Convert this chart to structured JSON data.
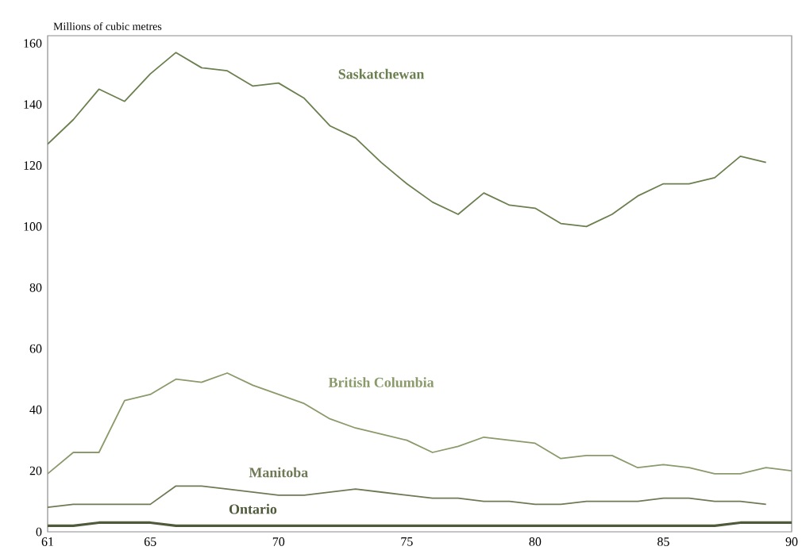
{
  "chart_data": {
    "type": "line",
    "ylabel": "Millions of cubic metres",
    "x": [
      61,
      62,
      63,
      64,
      65,
      66,
      67,
      68,
      69,
      70,
      71,
      72,
      73,
      74,
      75,
      76,
      77,
      78,
      79,
      80,
      81,
      82,
      83,
      84,
      85,
      86,
      87,
      88,
      89,
      90
    ],
    "xlim": [
      61,
      90
    ],
    "xticks": [
      61,
      65,
      70,
      75,
      80,
      85,
      90
    ],
    "ylim": [
      0,
      162.5
    ],
    "yticks": [
      0,
      20,
      40,
      60,
      80,
      100,
      120,
      140,
      160
    ],
    "grid": false,
    "legend": false,
    "marker": "none",
    "line_style": "solid",
    "series": [
      {
        "name": "Saskatchewan",
        "color": "#6b7f4f",
        "values": [
          127,
          135,
          145,
          141,
          150,
          157,
          152,
          151,
          146,
          147,
          142,
          133,
          129,
          121,
          114,
          108,
          104,
          111,
          107,
          106,
          101,
          100,
          104,
          110,
          114,
          114,
          116,
          123,
          121,
          null
        ]
      },
      {
        "name": "British Columbia",
        "color": "#8a9a6a",
        "values": [
          19,
          26,
          26,
          43,
          45,
          50,
          49,
          52,
          48,
          45,
          42,
          37,
          34,
          32,
          30,
          26,
          28,
          31,
          30,
          29,
          24,
          25,
          25,
          21,
          22,
          21,
          19,
          19,
          21,
          20
        ]
      },
      {
        "name": "Manitoba",
        "color": "#6e7a55",
        "values": [
          8,
          9,
          9,
          9,
          9,
          15,
          15,
          14,
          13,
          12,
          12,
          13,
          14,
          13,
          12,
          11,
          11,
          10,
          10,
          9,
          9,
          10,
          10,
          10,
          11,
          11,
          10,
          10,
          9,
          null
        ]
      },
      {
        "name": "Ontario",
        "color": "#4f5a3a",
        "values": [
          2,
          2,
          3,
          3,
          3,
          2,
          2,
          2,
          2,
          2,
          2,
          2,
          2,
          2,
          2,
          2,
          2,
          2,
          2,
          2,
          2,
          2,
          2,
          2,
          2,
          2,
          2,
          3,
          3,
          3
        ]
      }
    ]
  }
}
